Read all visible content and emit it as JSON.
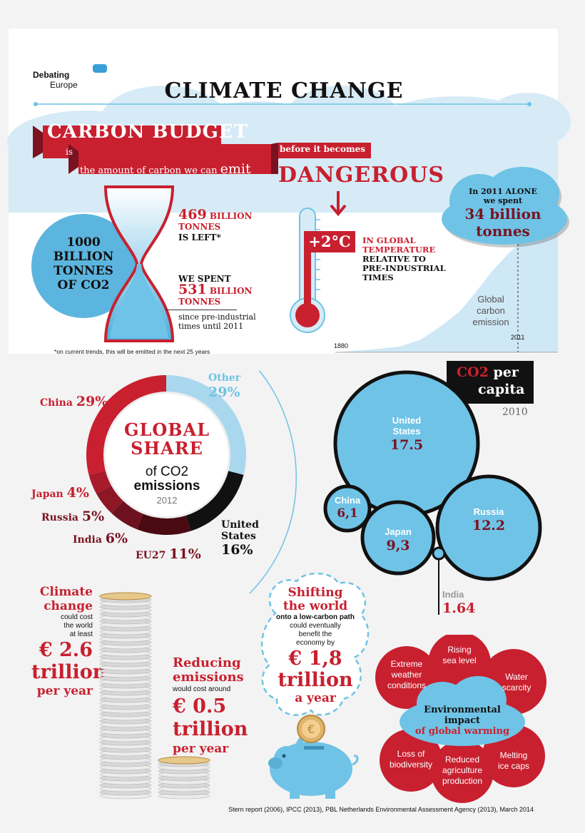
{
  "header": {
    "logo_line1": "Debating",
    "logo_line2": "Europe",
    "title": "CLIMATE CHANGE"
  },
  "carbon_budget": {
    "banner": "CARBON BUDGET",
    "is": "is",
    "definition_a": "the amount of carbon we can",
    "definition_emit": "emit",
    "before": "before it becomes",
    "dangerous": "DANGEROUS",
    "total_line1": "1000",
    "total_line2": "BILLION",
    "total_line3": "TONNES",
    "total_line4": "OF CO2",
    "left_value": "469",
    "left_unit1": "BILLION",
    "left_unit2": "TONNES",
    "left_suffix": "IS LEFT*",
    "spent_intro": "WE SPENT",
    "spent_value": "531",
    "spent_unit1": "BILLION",
    "spent_unit2": "TONNES",
    "spent_since": "since pre-industrial",
    "spent_until": "times until 2011",
    "footnote": "*on current trends, this will be emitted in the next 25 years"
  },
  "temperature": {
    "value": "+2°C",
    "line1": "IN GLOBAL",
    "line2": "TEMPERATURE",
    "line3": "RELATIVE TO",
    "line4": "PRE-INDUSTRIAL",
    "line5": "TIMES"
  },
  "emissions_2011": {
    "line1": "In 2011 ALONE",
    "line2": "we spent",
    "value": "34 billion",
    "unit": "tonnes",
    "chart_label1": "Global",
    "chart_label2": "carbon",
    "chart_label3": "emission",
    "year_start": "1880",
    "year_end": "2011"
  },
  "global_share": {
    "title1": "GLOBAL",
    "title2": "SHARE",
    "title3": "of CO2",
    "title4": "emissions",
    "year": "2012",
    "chart_data": {
      "type": "pie",
      "categories": [
        "Other",
        "United States",
        "EU27",
        "India",
        "Russia",
        "Japan",
        "China"
      ],
      "values": [
        29,
        16,
        11,
        6,
        5,
        4,
        29
      ],
      "colors": [
        "#a9d8ee",
        "#111111",
        "#4a0a12",
        "#6e1220",
        "#8e1726",
        "#a81b2c",
        "#c8202f"
      ]
    },
    "labels": {
      "china_name": "China",
      "china_pct": "29%",
      "other_name": "Other",
      "other_pct": "29%",
      "japan_name": "Japan",
      "japan_pct": "4%",
      "russia_name": "Russia",
      "russia_pct": "5%",
      "india_name": "India",
      "india_pct": "6%",
      "eu_name": "EU27",
      "eu_pct": "11%",
      "us_name1": "United",
      "us_name2": "States",
      "us_pct": "16%"
    }
  },
  "per_capita": {
    "title_co2": "CO2",
    "title_per": "per",
    "title_capita": "capita",
    "year": "2010",
    "us_name1": "United",
    "us_name2": "States",
    "us_value": "17.5",
    "china_name": "China",
    "china_value": "6,1",
    "japan_name": "Japan",
    "japan_value": "9,3",
    "russia_name": "Russia",
    "russia_value": "12.2",
    "india_name": "India",
    "india_value": "1.64",
    "chart_data": {
      "type": "bubble",
      "categories": [
        "United States",
        "Russia",
        "Japan",
        "China",
        "India"
      ],
      "values": [
        17.5,
        12.2,
        9.3,
        6.1,
        1.64
      ]
    }
  },
  "costs": {
    "cc_line1": "Climate",
    "cc_line2": "change",
    "cc_line3": "could cost",
    "cc_line4": "the world",
    "cc_line5": "at least",
    "cc_value": "€ 2.6",
    "cc_unit": "trillion",
    "cc_per": "per year",
    "red_line1": "Reducing",
    "red_line2": "emissions",
    "red_line3": "would cost around",
    "red_value": "€ 0.5",
    "red_unit": "trillion",
    "red_per": "per year",
    "chart_data": {
      "type": "bar",
      "categories": [
        "Climate change",
        "Reducing emissions"
      ],
      "values": [
        2.6,
        0.5
      ]
    }
  },
  "shifting": {
    "line1": "Shifting",
    "line2": "the world",
    "line3": "onto a low-carbon path",
    "line4": "could eventually",
    "line5": "benefit the",
    "line6": "economy by",
    "value": "€ 1,8",
    "unit": "trillion",
    "per": "a year"
  },
  "environment": {
    "center1": "Environmental",
    "center2": "impact",
    "center3": "of global warming",
    "extreme1": "Extreme",
    "extreme2": "weather",
    "extreme3": "conditions",
    "sea1": "Rising",
    "sea2": "sea level",
    "water1": "Water",
    "water2": "scarcity",
    "bio1": "Loss of",
    "bio2": "biodiversity",
    "agri1": "Reduced",
    "agri2": "agriculture",
    "agri3": "production",
    "ice1": "Melting",
    "ice2": "ice caps"
  },
  "sources": "Stern report (2006), IPCC (2013), PBL Netherlands Environmental Assessment Agency (2013), March 2014"
}
